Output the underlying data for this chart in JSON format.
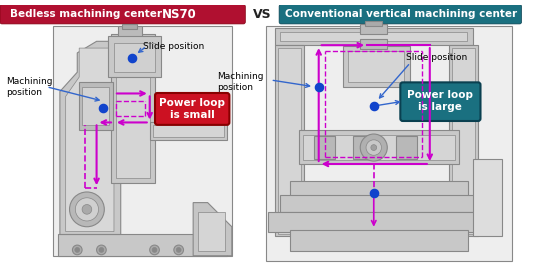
{
  "left_title_normal": "Bedless machining center ",
  "left_title_bold": "NS70",
  "left_title_bg": "#b01030",
  "right_title": "Conventional vertical machining center",
  "right_title_bg": "#1a7080",
  "vs_text": "VS",
  "left_label1": "Machining\nposition",
  "left_label2": "Slide position",
  "left_box_text": "Power loop\nis small",
  "left_box_bg": "#cc1122",
  "right_label1": "Machining\nposition",
  "right_label2": "Slide position",
  "right_box_text": "Power loop\nis large",
  "right_box_bg": "#1a7080",
  "arrow_color": "#3366cc",
  "loop_color": "#cc00cc",
  "machine_color": "#c8c8c8",
  "machine_line": "#888888",
  "machine_dark": "#aaaaaa",
  "dot_color": "#1144cc"
}
